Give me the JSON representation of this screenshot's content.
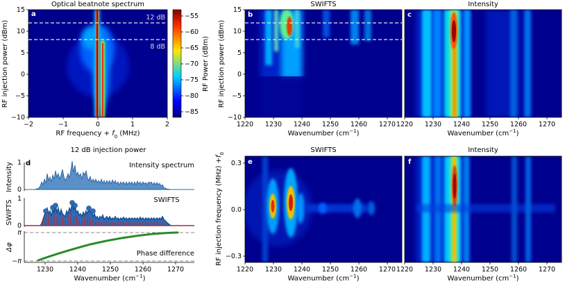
{
  "chart_data": [
    {
      "id": "a",
      "type": "heatmap",
      "panel_label": "a",
      "title": "Optical beatnote spectrum",
      "xlabel": "RF frequency + f0 (MHz)",
      "ylabel": "RF injection power (dBm)",
      "xlim": [
        -2,
        2
      ],
      "ylim": [
        -10,
        15
      ],
      "xticks": [
        "−2",
        "−1",
        "0",
        "1",
        "2"
      ],
      "yticks": [
        "−10",
        "−5",
        "0",
        "5",
        "10",
        "15"
      ],
      "annotations": [
        {
          "text": "12 dB",
          "y": 12
        },
        {
          "text": "8 dB",
          "y": 8
        }
      ],
      "colorbar": {
        "label": "RF Power (dBm)",
        "range": [
          -86,
          -52
        ],
        "ticks": [
          "−55",
          "−60",
          "−65",
          "−70",
          "−75",
          "−80",
          "−85"
        ],
        "tick_values": [
          -55,
          -60,
          -65,
          -70,
          -75,
          -80,
          -85
        ]
      }
    },
    {
      "id": "b",
      "type": "heatmap",
      "panel_label": "b",
      "title": "SWIFTS",
      "xlabel": "Wavenumber (cm−1)",
      "ylabel": "RF injection power (dBm)",
      "xlim": [
        1220,
        1275
      ],
      "ylim": [
        -10,
        15
      ],
      "xticks": [
        "1220",
        "1230",
        "1240",
        "1250",
        "1260",
        "1270"
      ],
      "yticks": [
        "−10",
        "−5",
        "0",
        "5",
        "10",
        "15"
      ],
      "dashed_lines_y": [
        12,
        8
      ]
    },
    {
      "id": "c",
      "type": "heatmap",
      "panel_label": "c",
      "title": "Intensity",
      "xlabel": "Wavenumber (cm−1)",
      "xlim": [
        1220,
        1275
      ],
      "ylim": [
        -10,
        15
      ],
      "xticks": [
        "1220",
        "1230",
        "1240",
        "1250",
        "1260",
        "1270"
      ]
    },
    {
      "id": "d",
      "type": "line",
      "panel_label": "d",
      "title": "12 dB injection power",
      "xlabel": "Wavenumber (cm−1)",
      "xlim": [
        1222,
        1274
      ],
      "xticks": [
        "1230",
        "1240",
        "1250",
        "1260",
        "1270"
      ],
      "subplots": [
        {
          "ylabel": "Intensity",
          "yticks": [
            "0",
            "1"
          ],
          "ylim": [
            0,
            1.1
          ],
          "label": "Intensity spectrum"
        },
        {
          "ylabel": "SWIFTS",
          "yticks": [
            "0",
            "1"
          ],
          "ylim": [
            0,
            1.1
          ],
          "label": "SWIFTS"
        },
        {
          "ylabel": "Δφ",
          "yticks": [
            "π",
            "−π"
          ],
          "ylim": [
            -3.1416,
            3.1416
          ],
          "label": "Phase difference",
          "series": [
            {
              "name": "Phase difference",
              "x": [
                1226,
                1234,
                1242,
                1250,
                1258,
                1266,
                1269
              ],
              "y": [
                -3.0,
                -2.1,
                -1.0,
                0.4,
                1.9,
                2.9,
                3.1
              ]
            }
          ]
        }
      ],
      "peaks_cm1": [
        1229,
        1233,
        1236.5,
        1240,
        1242
      ]
    },
    {
      "id": "e",
      "type": "heatmap",
      "panel_label": "e",
      "title": "SWIFTS",
      "xlabel": "Wavenumber (cm−1)",
      "ylabel": "RF injection frequency (MHz) +f0",
      "xlim": [
        1220,
        1275
      ],
      "ylim": [
        -0.35,
        0.35
      ],
      "xticks": [
        "1220",
        "1230",
        "1240",
        "1250",
        "1260",
        "1270"
      ],
      "yticks": [
        "−0.3",
        "0.0",
        "0.3"
      ]
    },
    {
      "id": "f",
      "type": "heatmap",
      "panel_label": "f",
      "title": "Intensity",
      "xlabel": "Wavenumber (cm−1)",
      "xlim": [
        1220,
        1275
      ],
      "ylim": [
        -0.35,
        0.35
      ],
      "xticks": [
        "1220",
        "1230",
        "1240",
        "1250",
        "1260",
        "1270"
      ]
    }
  ],
  "colors": {
    "dark_blue": "#00008f",
    "mid_blue": "#0030d0",
    "cyan": "#00c8ff",
    "yellow": "#f2e600",
    "orange": "#ff8000",
    "red": "#c00000",
    "intensity_line": "#1f5d9a",
    "swifts_blue": "#2060b0",
    "swifts_red": "#d02020",
    "phase_green": "#2a8a2a",
    "dashed_gray": "#888888"
  }
}
